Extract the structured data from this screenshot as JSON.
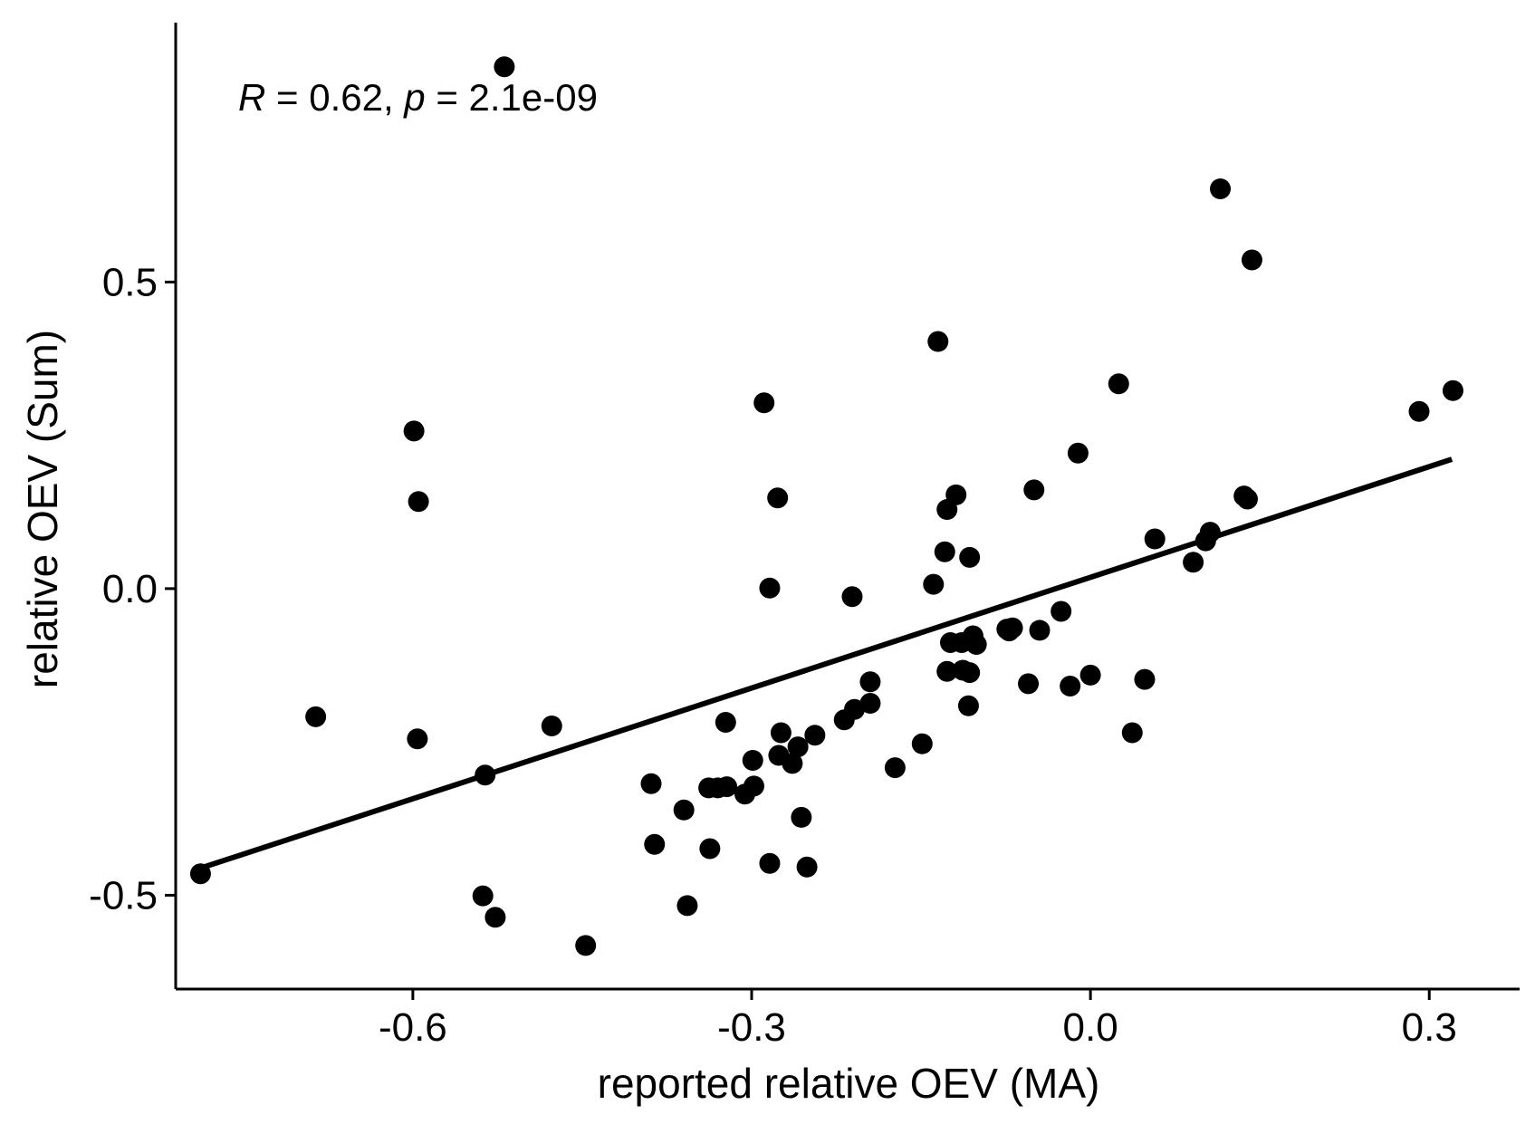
{
  "chart_data": {
    "type": "scatter",
    "title": "",
    "xlabel": "reported relative OEV (MA)",
    "ylabel": "relative OEV (Sum)",
    "xlim": [
      -0.81,
      0.38
    ],
    "ylim": [
      -0.653,
      0.923
    ],
    "x_ticks": [
      -0.6,
      -0.3,
      0.0,
      0.3
    ],
    "x_tick_labels": [
      "-0.6",
      "-0.3",
      "0.0",
      "0.3"
    ],
    "y_ticks": [
      -0.5,
      0.0,
      0.5
    ],
    "y_tick_labels": [
      "-0.5",
      "0.0",
      "0.5"
    ],
    "grid": false,
    "legend": "none",
    "colors": {
      "points": "#000000",
      "line": "#000000",
      "axes": "#000000"
    },
    "annotation": {
      "r_symbol": "R",
      "r_text": " = 0.62, ",
      "p_symbol": "p",
      "p_text": " = 2.1e-09"
    },
    "regression_line": {
      "x": [
        -0.79,
        0.32
      ],
      "y": [
        -0.457,
        0.211
      ]
    },
    "points": [
      {
        "x": -0.788,
        "y": -0.465
      },
      {
        "x": -0.686,
        "y": -0.209
      },
      {
        "x": -0.599,
        "y": 0.257
      },
      {
        "x": -0.595,
        "y": 0.142
      },
      {
        "x": -0.596,
        "y": -0.245
      },
      {
        "x": -0.536,
        "y": -0.304
      },
      {
        "x": -0.538,
        "y": -0.501
      },
      {
        "x": -0.527,
        "y": -0.536
      },
      {
        "x": -0.519,
        "y": 0.851
      },
      {
        "x": -0.477,
        "y": -0.224
      },
      {
        "x": -0.447,
        "y": -0.582
      },
      {
        "x": -0.389,
        "y": -0.318
      },
      {
        "x": -0.386,
        "y": -0.417
      },
      {
        "x": -0.36,
        "y": -0.361
      },
      {
        "x": -0.357,
        "y": -0.517
      },
      {
        "x": -0.338,
        "y": -0.325
      },
      {
        "x": -0.337,
        "y": -0.424
      },
      {
        "x": -0.33,
        "y": -0.325
      },
      {
        "x": -0.323,
        "y": -0.218
      },
      {
        "x": -0.322,
        "y": -0.323
      },
      {
        "x": -0.306,
        "y": -0.335
      },
      {
        "x": -0.299,
        "y": -0.28
      },
      {
        "x": -0.298,
        "y": -0.322
      },
      {
        "x": -0.289,
        "y": 0.303
      },
      {
        "x": -0.284,
        "y": -0.448
      },
      {
        "x": -0.284,
        "y": 0.001
      },
      {
        "x": -0.277,
        "y": 0.148
      },
      {
        "x": -0.276,
        "y": -0.272
      },
      {
        "x": -0.274,
        "y": -0.235
      },
      {
        "x": -0.264,
        "y": -0.285
      },
      {
        "x": -0.259,
        "y": -0.258
      },
      {
        "x": -0.256,
        "y": -0.373
      },
      {
        "x": -0.251,
        "y": -0.454
      },
      {
        "x": -0.244,
        "y": -0.239
      },
      {
        "x": -0.218,
        "y": -0.214
      },
      {
        "x": -0.211,
        "y": -0.013
      },
      {
        "x": -0.209,
        "y": -0.197
      },
      {
        "x": -0.195,
        "y": -0.187
      },
      {
        "x": -0.195,
        "y": -0.152
      },
      {
        "x": -0.173,
        "y": -0.292
      },
      {
        "x": -0.149,
        "y": -0.253
      },
      {
        "x": -0.139,
        "y": 0.007
      },
      {
        "x": -0.135,
        "y": 0.403
      },
      {
        "x": -0.129,
        "y": 0.06
      },
      {
        "x": -0.127,
        "y": -0.135
      },
      {
        "x": -0.127,
        "y": 0.129
      },
      {
        "x": -0.124,
        "y": -0.088
      },
      {
        "x": -0.119,
        "y": 0.153
      },
      {
        "x": -0.114,
        "y": -0.088
      },
      {
        "x": -0.113,
        "y": -0.133
      },
      {
        "x": -0.107,
        "y": -0.137
      },
      {
        "x": -0.108,
        "y": -0.191
      },
      {
        "x": -0.107,
        "y": 0.051
      },
      {
        "x": -0.104,
        "y": -0.077
      },
      {
        "x": -0.101,
        "y": -0.091
      },
      {
        "x": -0.074,
        "y": -0.066
      },
      {
        "x": -0.072,
        "y": -0.069
      },
      {
        "x": -0.069,
        "y": -0.064
      },
      {
        "x": -0.055,
        "y": -0.155
      },
      {
        "x": -0.05,
        "y": 0.161
      },
      {
        "x": -0.045,
        "y": -0.068
      },
      {
        "x": -0.026,
        "y": -0.037
      },
      {
        "x": -0.018,
        "y": -0.159
      },
      {
        "x": -0.011,
        "y": 0.221
      },
      {
        "x": 0.0,
        "y": -0.141
      },
      {
        "x": 0.025,
        "y": 0.334
      },
      {
        "x": 0.037,
        "y": -0.235
      },
      {
        "x": 0.048,
        "y": -0.148
      },
      {
        "x": 0.057,
        "y": 0.081
      },
      {
        "x": 0.091,
        "y": 0.043
      },
      {
        "x": 0.102,
        "y": 0.078
      },
      {
        "x": 0.106,
        "y": 0.092
      },
      {
        "x": 0.115,
        "y": 0.652
      },
      {
        "x": 0.136,
        "y": 0.151
      },
      {
        "x": 0.139,
        "y": 0.146
      },
      {
        "x": 0.143,
        "y": 0.536
      },
      {
        "x": 0.291,
        "y": 0.289
      },
      {
        "x": 0.321,
        "y": 0.323
      }
    ]
  }
}
